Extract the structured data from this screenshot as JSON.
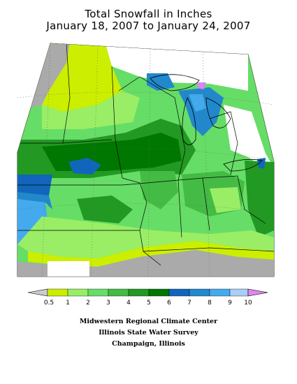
{
  "title_line1": "Total Snowfall in Inches",
  "title_line2": "January 18, 2007 to January 24, 2007",
  "legend": {
    "ticks": [
      "0.5",
      "1",
      "2",
      "3",
      "4",
      "5",
      "6",
      "7",
      "8",
      "9",
      "10"
    ],
    "colors": [
      "#cccccc",
      "#ccee00",
      "#99ee66",
      "#66dd66",
      "#44bb44",
      "#229922",
      "#007700",
      "#1166bb",
      "#2288cc",
      "#44aaee",
      "#aaccf8",
      "#dd88ee"
    ]
  },
  "credits": {
    "line1": "Midwestern Regional Climate Center",
    "line2": "Illinois State Water Survey",
    "line3": "Champaign, Illinois"
  }
}
